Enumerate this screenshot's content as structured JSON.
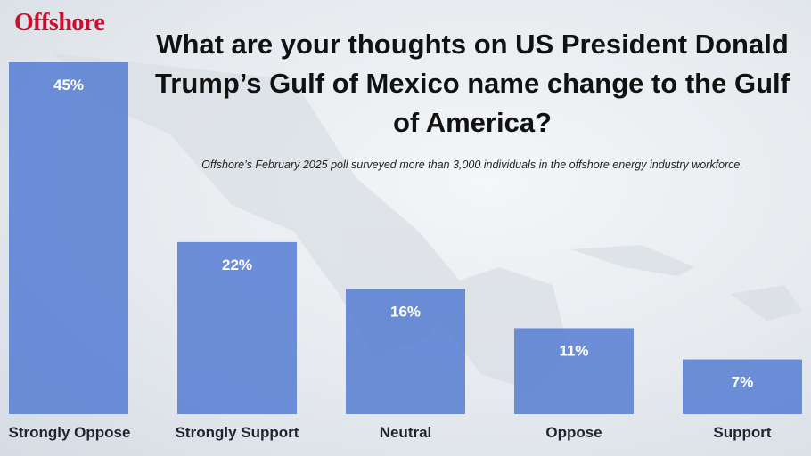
{
  "brand": "Offshore",
  "chart_data": {
    "type": "bar",
    "title": "What are your thoughts on US President Donald Trump’s Gulf of Mexico name change to the Gulf of America?",
    "subtitle": "Offshore’s February 2025 poll surveyed more than 3,000 individuals in the offshore energy industry workforce.",
    "categories": [
      "Strongly Oppose",
      "Strongly Support",
      "Neutral",
      "Oppose",
      "Support"
    ],
    "values": [
      45,
      22,
      16,
      11,
      7
    ],
    "value_labels": [
      "45%",
      "22%",
      "16%",
      "11%",
      "7%"
    ],
    "color": "#5a7fd3"
  }
}
